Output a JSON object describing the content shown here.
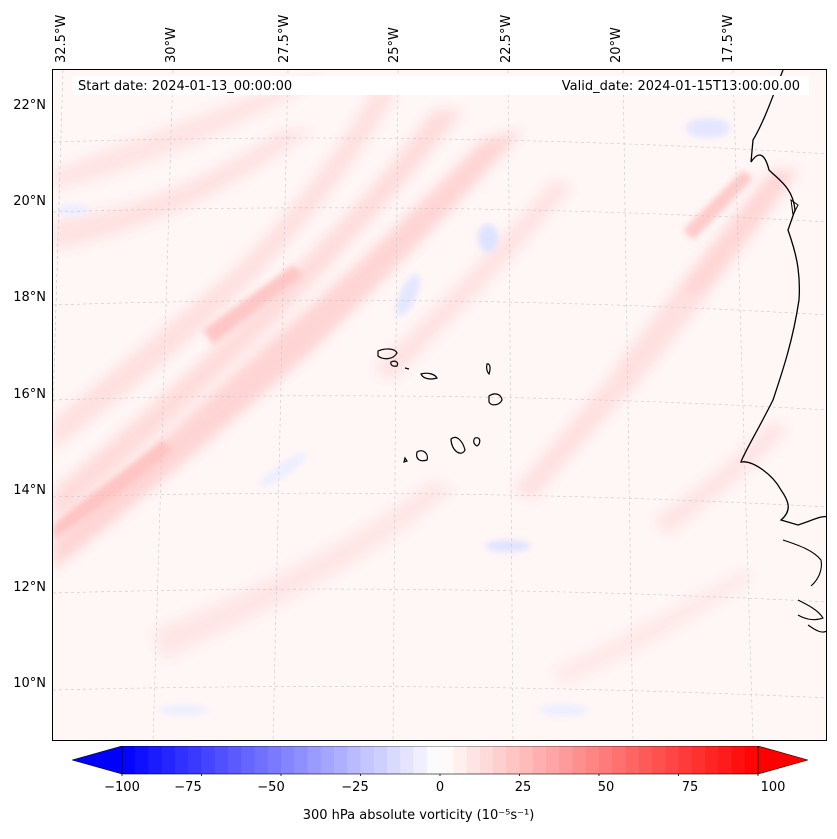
{
  "map": {
    "start_date": "Start date: 2024-01-13_00:00:00",
    "valid_date": "Valid_date: 2024-01-15T13:00:00.00",
    "longitude_labels": [
      "32.5°W",
      "30°W",
      "27.5°W",
      "25°W",
      "22.5°W",
      "20°W",
      "17.5°W"
    ],
    "latitude_labels": [
      "22°N",
      "20°N",
      "18°N",
      "16°N",
      "14°N",
      "12°N",
      "10°N"
    ],
    "extent": {
      "lon_west": -33.0,
      "lon_east": -15.7,
      "lat_south": 8.9,
      "lat_north": 22.8
    },
    "field": "300 hPa absolute vorticity",
    "colormap": "bwr",
    "colors": {
      "negative": "#0000ff",
      "neutral": "#ffffff",
      "positive": "#ff0000",
      "coastline": "#000000",
      "gridline": "#bbbbbb"
    }
  },
  "colorbar": {
    "label": "300 hPa absolute vorticity (10⁻⁵s⁻¹)",
    "ticks": [
      "−100",
      "−75",
      "−50",
      "−25",
      "0",
      "25",
      "50",
      "75",
      "100"
    ],
    "range": [
      -100,
      100
    ],
    "extend": "both"
  }
}
